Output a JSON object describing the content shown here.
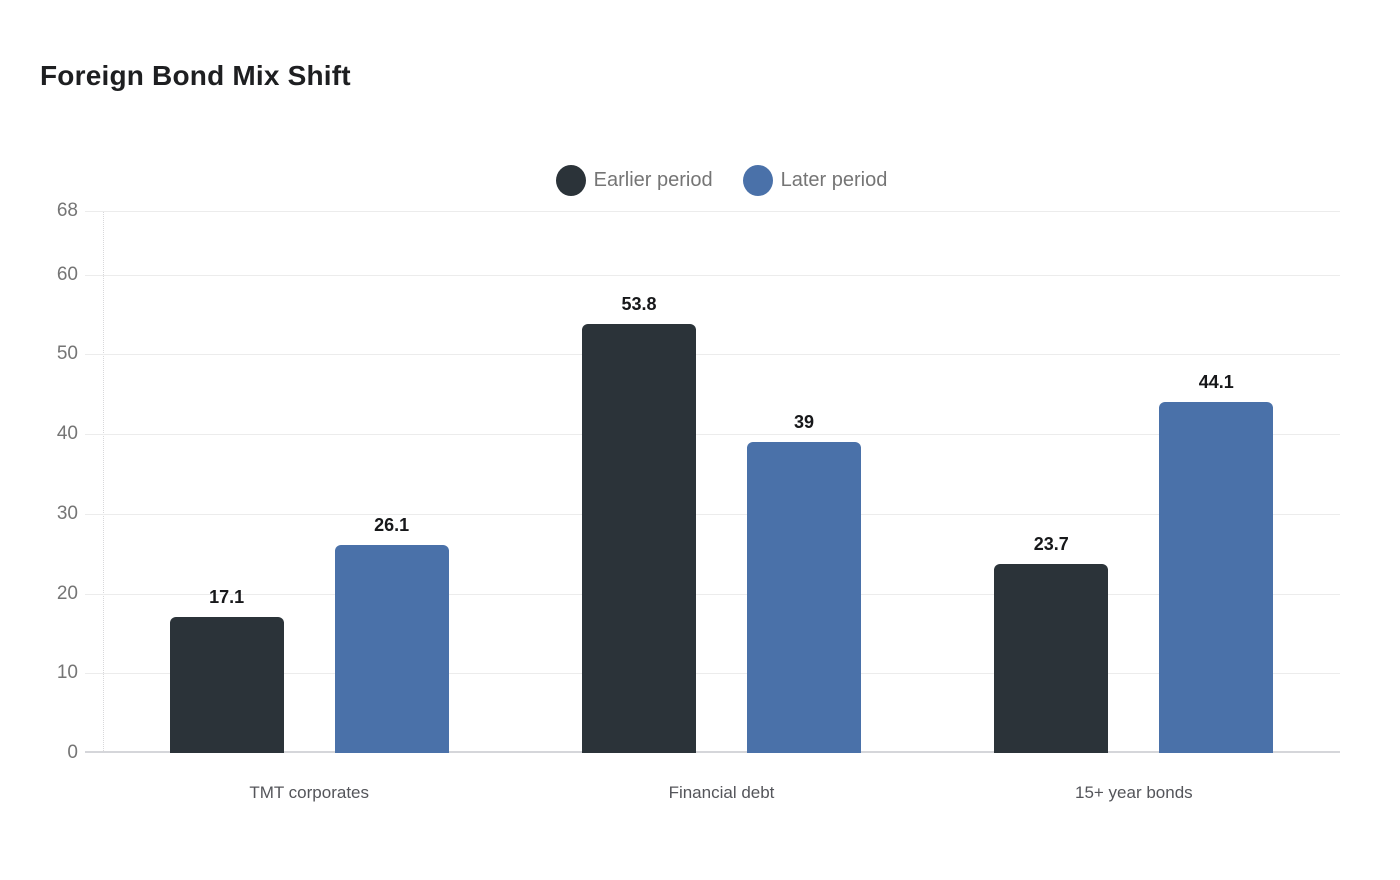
{
  "header": {
    "title": "Foreign Bond Mix Shift"
  },
  "chart_data": {
    "type": "bar",
    "title": "Foreign Bond Mix Shift",
    "categories": [
      "TMT corporates",
      "Financial debt",
      "15+ year bonds"
    ],
    "series": [
      {
        "name": "Earlier period",
        "color": "#2b3339",
        "values": [
          17.1,
          53.8,
          23.7
        ]
      },
      {
        "name": "Later period",
        "color": "#4a71a9",
        "values": [
          26.1,
          39,
          44.1
        ]
      }
    ],
    "xlabel": "",
    "ylabel": "",
    "ylim": [
      0,
      68
    ],
    "yticks": [
      0,
      10,
      20,
      30,
      40,
      50,
      60,
      68
    ],
    "grid": true,
    "grid_color": "#ececec",
    "baseline_color": "#d5d6da",
    "axis_text_color": "#757575",
    "value_label_color": "#17181a",
    "legend_position": "top-center",
    "legend_marker": "circle",
    "value_labels": true
  }
}
